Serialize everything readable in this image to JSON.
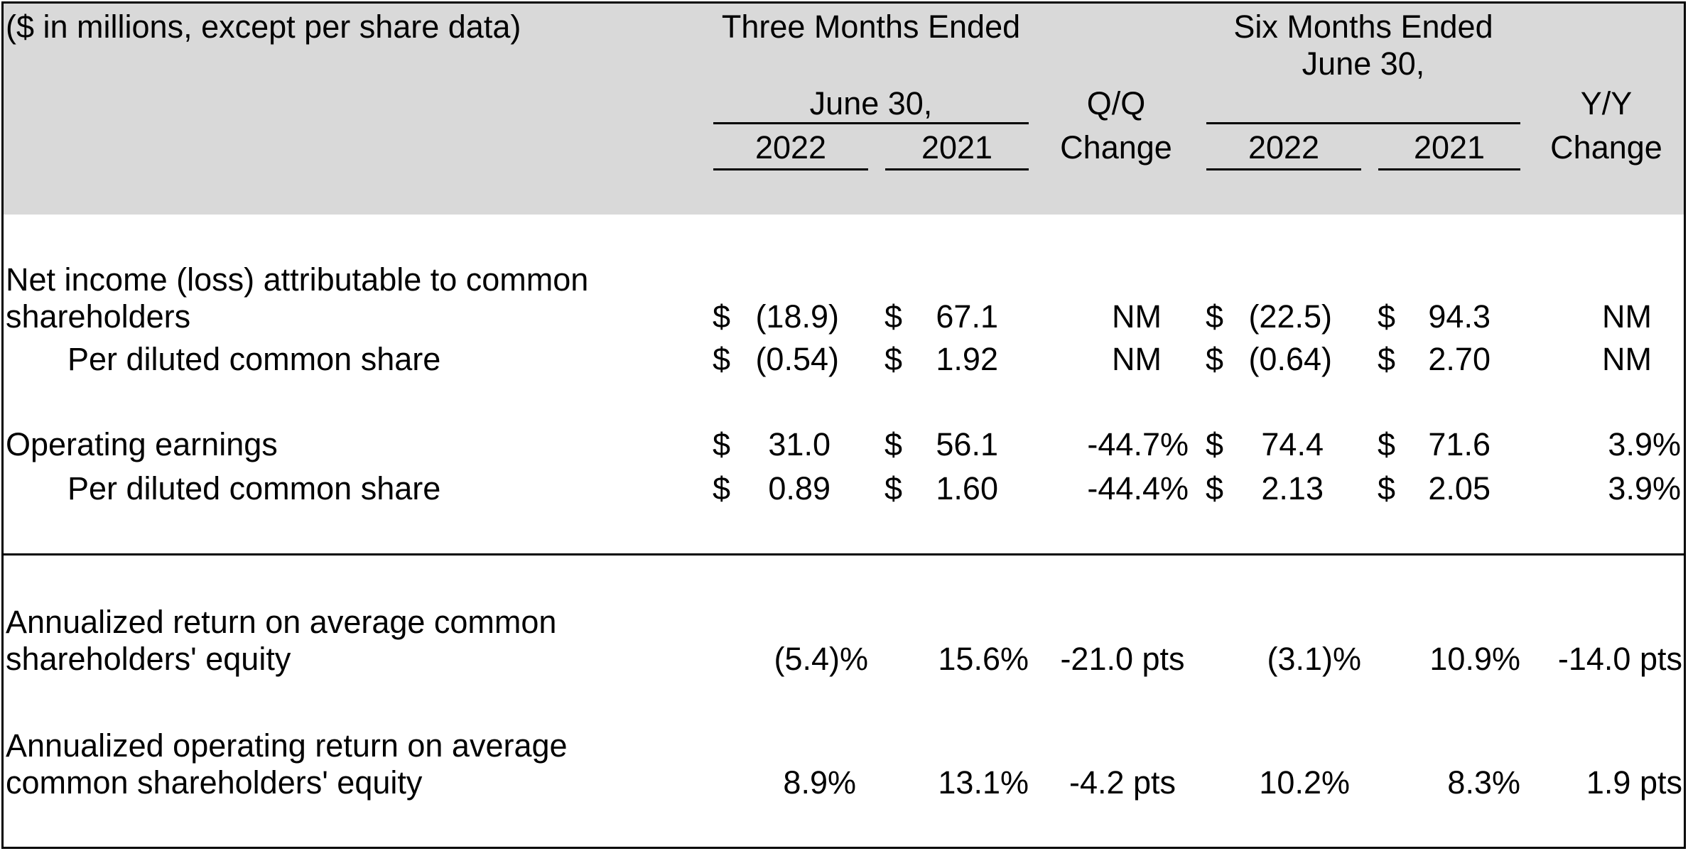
{
  "header": {
    "units_note": "($ in millions, except per share data)",
    "three_months": {
      "line1": "Three Months Ended",
      "line2": "June 30,",
      "col_a": "2022",
      "col_b": "2021"
    },
    "qq_change": {
      "line1": "Q/Q",
      "line2": "Change"
    },
    "six_months": {
      "line1": "Six Months Ended",
      "line2": "June 30,",
      "col_a": "2022",
      "col_b": "2021"
    },
    "yy_change": {
      "line1": "Y/Y",
      "line2": "Change"
    }
  },
  "currency_symbol": "$",
  "rows": {
    "net_income": {
      "label_line1": "Net income (loss) attributable to common",
      "label_line2": "shareholders",
      "q2022": "(18.9)",
      "q2021": "67.1",
      "qq": "NM",
      "s2022": "(22.5)",
      "s2021": "94.3",
      "yy": "NM"
    },
    "net_income_per_share": {
      "label": "Per diluted common share",
      "q2022": "(0.54)",
      "q2021": "1.92",
      "qq": "NM",
      "s2022": "(0.64)",
      "s2021": "2.70",
      "yy": "NM"
    },
    "operating_earnings": {
      "label": "Operating earnings",
      "q2022": "31.0",
      "q2021": "56.1",
      "qq": "-44.7%",
      "s2022": "74.4",
      "s2021": "71.6",
      "yy": "3.9%"
    },
    "operating_per_share": {
      "label": "Per diluted common share",
      "q2022": "0.89",
      "q2021": "1.60",
      "qq": "-44.4%",
      "s2022": "2.13",
      "s2021": "2.05",
      "yy": "3.9%"
    },
    "roe": {
      "label_line1": "Annualized return on average common",
      "label_line2": "shareholders' equity",
      "q2022": "(5.4)%",
      "q2021": "15.6%",
      "qq": "-21.0 pts",
      "s2022": "(3.1)%",
      "s2021": "10.9%",
      "yy": "-14.0 pts"
    },
    "operating_roe": {
      "label_line1": "Annualized operating return on average",
      "label_line2": "common shareholders' equity",
      "q2022": "8.9%",
      "q2021": "13.1%",
      "qq": "-4.2 pts",
      "s2022": "10.2%",
      "s2021": "8.3%",
      "yy": "1.9 pts"
    }
  }
}
